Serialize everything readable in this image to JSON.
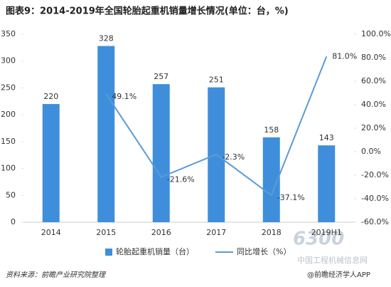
{
  "chart_data": {
    "type": "bar_line",
    "title": "图表9：2014-2019年全国轮胎起重机销量增长情况(单位：台，%)",
    "categories": [
      "2014",
      "2015",
      "2016",
      "2017",
      "2018",
      "2019H1"
    ],
    "series": [
      {
        "name": "轮胎起重机销量（台）",
        "type": "bar",
        "color": "#3f8edb",
        "values": [
          220,
          328,
          257,
          251,
          158,
          143
        ]
      },
      {
        "name": "同比增长（%）",
        "type": "line",
        "axis": "y2",
        "color": "#5b9bd5",
        "values": [
          null,
          49.1,
          -21.6,
          -2.3,
          -37.1,
          81.0
        ],
        "value_labels": [
          null,
          "49.1%",
          "-21.6%",
          "-2.3%",
          "-37.1%",
          "81.0%"
        ]
      }
    ],
    "ylim": [
      0,
      350
    ],
    "yticks": [
      0,
      50,
      100,
      150,
      200,
      250,
      300,
      350
    ],
    "y2lim": [
      -60,
      100
    ],
    "y2ticks": [
      {
        "value": -60,
        "label": "-60.0%"
      },
      {
        "value": -40,
        "label": "-40.0%"
      },
      {
        "value": -20,
        "label": "-20.0%"
      },
      {
        "value": 0,
        "label": "0.0%"
      },
      {
        "value": 20,
        "label": "20.0%"
      },
      {
        "value": 40,
        "label": "40.0%"
      },
      {
        "value": 60,
        "label": "60.0%"
      },
      {
        "value": 80,
        "label": "80.0%"
      },
      {
        "value": 100,
        "label": "100.0%"
      }
    ],
    "legend": "bottom",
    "source": "资料来源：前瞻产业研究院整理",
    "watermarks": [
      "6300",
      "中国工程机械信息网",
      "@前瞻经济学人APP"
    ]
  }
}
